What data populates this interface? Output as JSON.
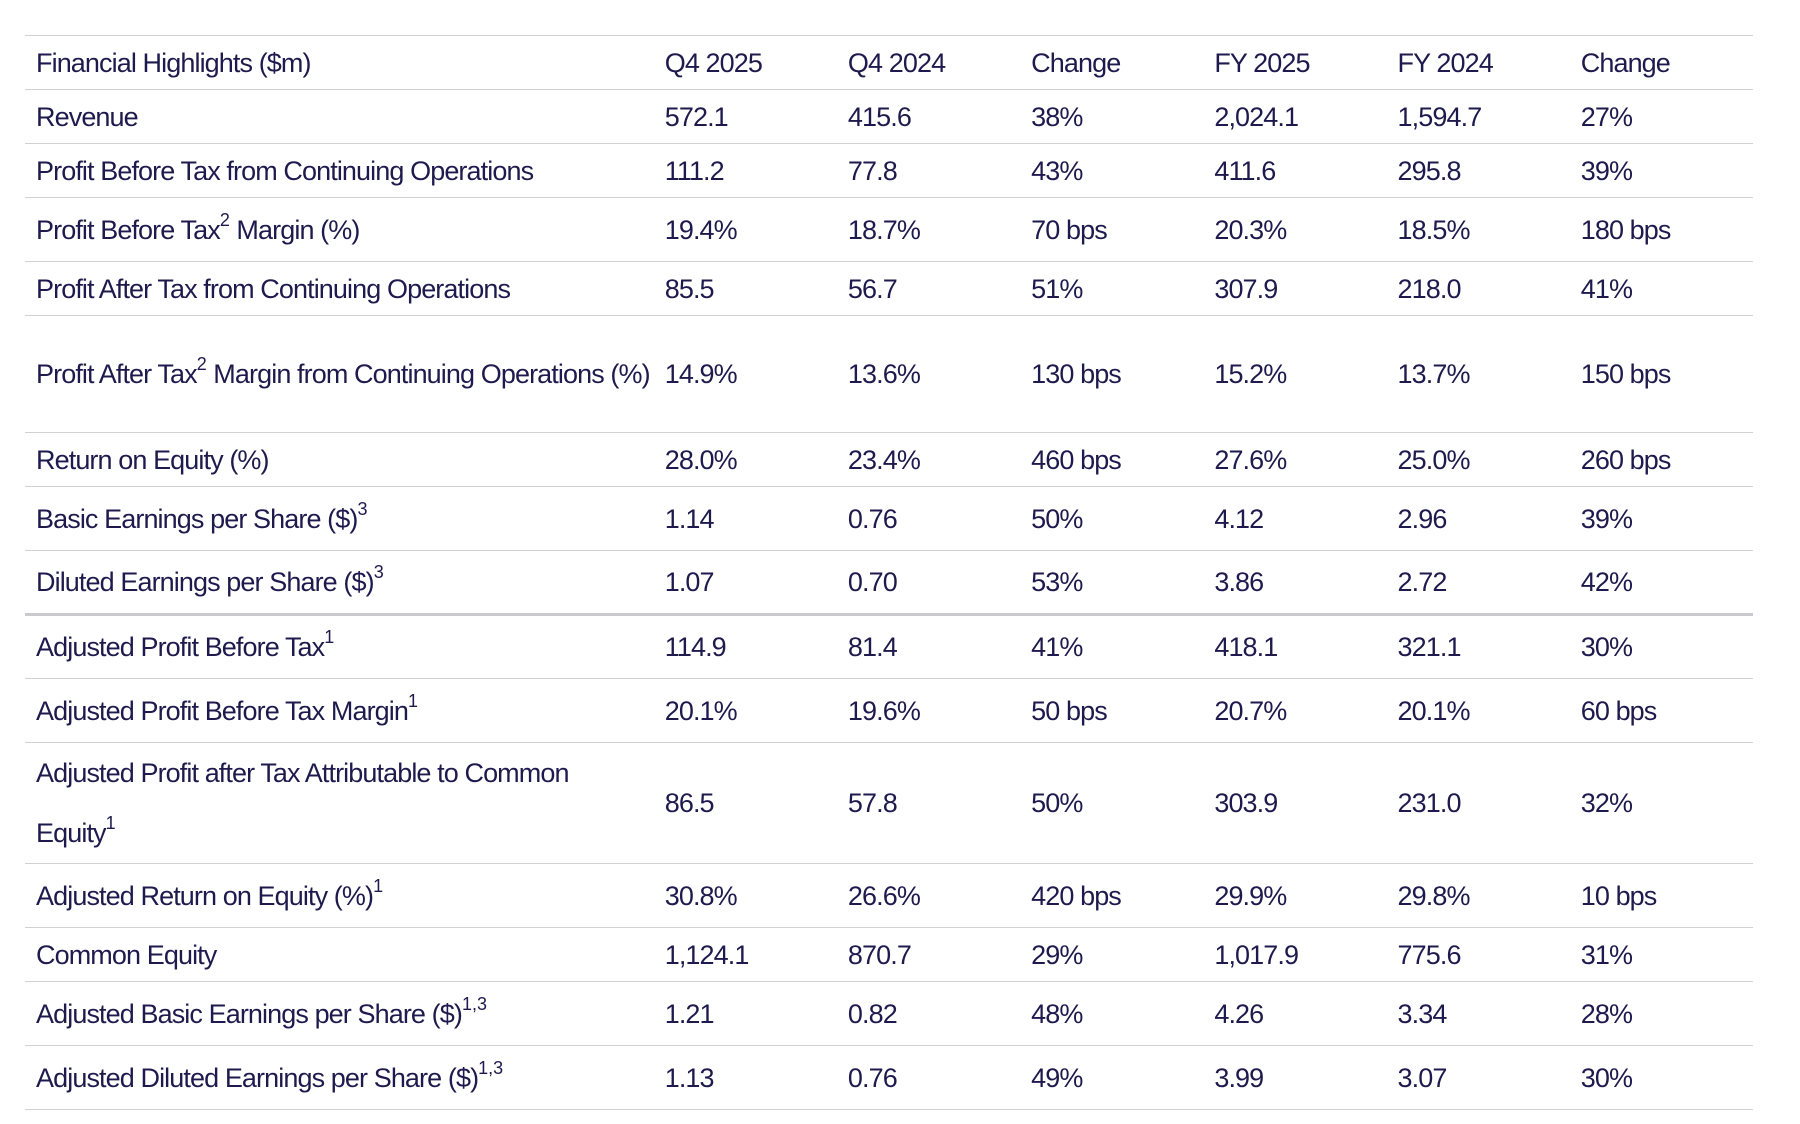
{
  "header": {
    "title": "Financial Highlights ($m)",
    "columns": [
      "Q4 2025",
      "Q4 2024",
      "Change",
      "FY 2025",
      "FY 2024",
      "Change"
    ]
  },
  "rows": [
    {
      "label": "Revenue",
      "sup": "",
      "values": [
        "572.1",
        "415.6",
        "38%",
        "2,024.1",
        "1,594.7",
        "27%"
      ]
    },
    {
      "label": "Profit Before Tax from Continuing Operations",
      "sup": "",
      "values": [
        "111.2",
        "77.8",
        "43%",
        "411.6",
        "295.8",
        "39%"
      ]
    },
    {
      "label": "Profit Before Tax",
      "mid_sup": "2",
      "label_rest": " Margin (%)",
      "values": [
        "19.4%",
        "18.7%",
        "70 bps",
        "20.3%",
        "18.5%",
        "180 bps"
      ]
    },
    {
      "label": "Profit After Tax from Continuing Operations",
      "sup": "",
      "values": [
        "85.5",
        "56.7",
        "51%",
        "307.9",
        "218.0",
        "41%"
      ]
    },
    {
      "label": "Profit After Tax",
      "mid_sup": "2",
      "label_rest": " Margin from Continuing Operations (%)",
      "values": [
        "14.9%",
        "13.6%",
        "130 bps",
        "15.2%",
        "13.7%",
        "150 bps"
      ]
    },
    {
      "label": "Return on Equity (%)",
      "sup": "",
      "values": [
        "28.0%",
        "23.4%",
        "460 bps",
        "27.6%",
        "25.0%",
        "260 bps"
      ]
    },
    {
      "label": "Basic Earnings per Share ($)",
      "sup": "3",
      "values": [
        "1.14",
        "0.76",
        "50%",
        "4.12",
        "2.96",
        "39%"
      ]
    },
    {
      "label": "Diluted Earnings per Share ($)",
      "sup": "3",
      "values": [
        "1.07",
        "0.70",
        "53%",
        "3.86",
        "2.72",
        "42%"
      ]
    },
    {
      "label": "Adjusted Profit Before Tax",
      "sup": "1",
      "values": [
        "114.9",
        "81.4",
        "41%",
        "418.1",
        "321.1",
        "30%"
      ]
    },
    {
      "label": "Adjusted Profit Before Tax Margin",
      "sup": "1",
      "values": [
        "20.1%",
        "19.6%",
        "50 bps",
        "20.7%",
        "20.1%",
        "60 bps"
      ]
    },
    {
      "label": "Adjusted Profit after Tax Attributable to Common Equity",
      "sup": "1",
      "values": [
        "86.5",
        "57.8",
        "50%",
        "303.9",
        "231.0",
        "32%"
      ]
    },
    {
      "label": "Adjusted Return on Equity (%)",
      "sup": "1",
      "values": [
        "30.8%",
        "26.6%",
        "420 bps",
        "29.9%",
        "29.8%",
        "10 bps"
      ]
    },
    {
      "label": "Common Equity",
      "sup": "",
      "values": [
        "1,124.1",
        "870.7",
        "29%",
        "1,017.9",
        "775.6",
        "31%"
      ]
    },
    {
      "label": "Adjusted Basic Earnings per Share ($)",
      "sup": "1,3",
      "values": [
        "1.21",
        "0.82",
        "48%",
        "4.26",
        "3.34",
        "28%"
      ]
    },
    {
      "label": "Adjusted Diluted Earnings per Share ($)",
      "sup": "1,3",
      "values": [
        "1.13",
        "0.76",
        "49%",
        "3.99",
        "3.07",
        "30%"
      ]
    }
  ]
}
